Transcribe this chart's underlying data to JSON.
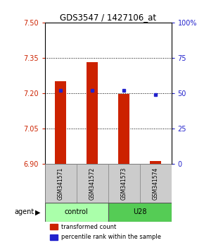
{
  "title": "GDS3547 / 1427106_at",
  "categories": [
    "GSM341571",
    "GSM341572",
    "GSM341573",
    "GSM341574"
  ],
  "bar_values": [
    7.252,
    7.332,
    7.197,
    6.912
  ],
  "bar_bottom": 6.9,
  "percentile_values": [
    52,
    52,
    52,
    49
  ],
  "ylim_left": [
    6.9,
    7.5
  ],
  "ylim_right": [
    0,
    100
  ],
  "yticks_left": [
    6.9,
    7.05,
    7.2,
    7.35,
    7.5
  ],
  "yticks_right": [
    0,
    25,
    50,
    75,
    100
  ],
  "ytick_labels_right": [
    "0",
    "25",
    "50",
    "75",
    "100%"
  ],
  "bar_color": "#cc2200",
  "marker_color": "#2222cc",
  "group_labels": [
    "control",
    "U28"
  ],
  "group_ranges": [
    [
      0,
      2
    ],
    [
      2,
      4
    ]
  ],
  "group_colors_light": "#aaffaa",
  "group_colors_dark": "#55cc55",
  "agent_label": "agent",
  "legend_items": [
    "transformed count",
    "percentile rank within the sample"
  ],
  "legend_colors": [
    "#cc2200",
    "#2222cc"
  ],
  "left_axis_color": "#cc2200",
  "right_axis_color": "#2222cc",
  "bar_width": 0.35
}
